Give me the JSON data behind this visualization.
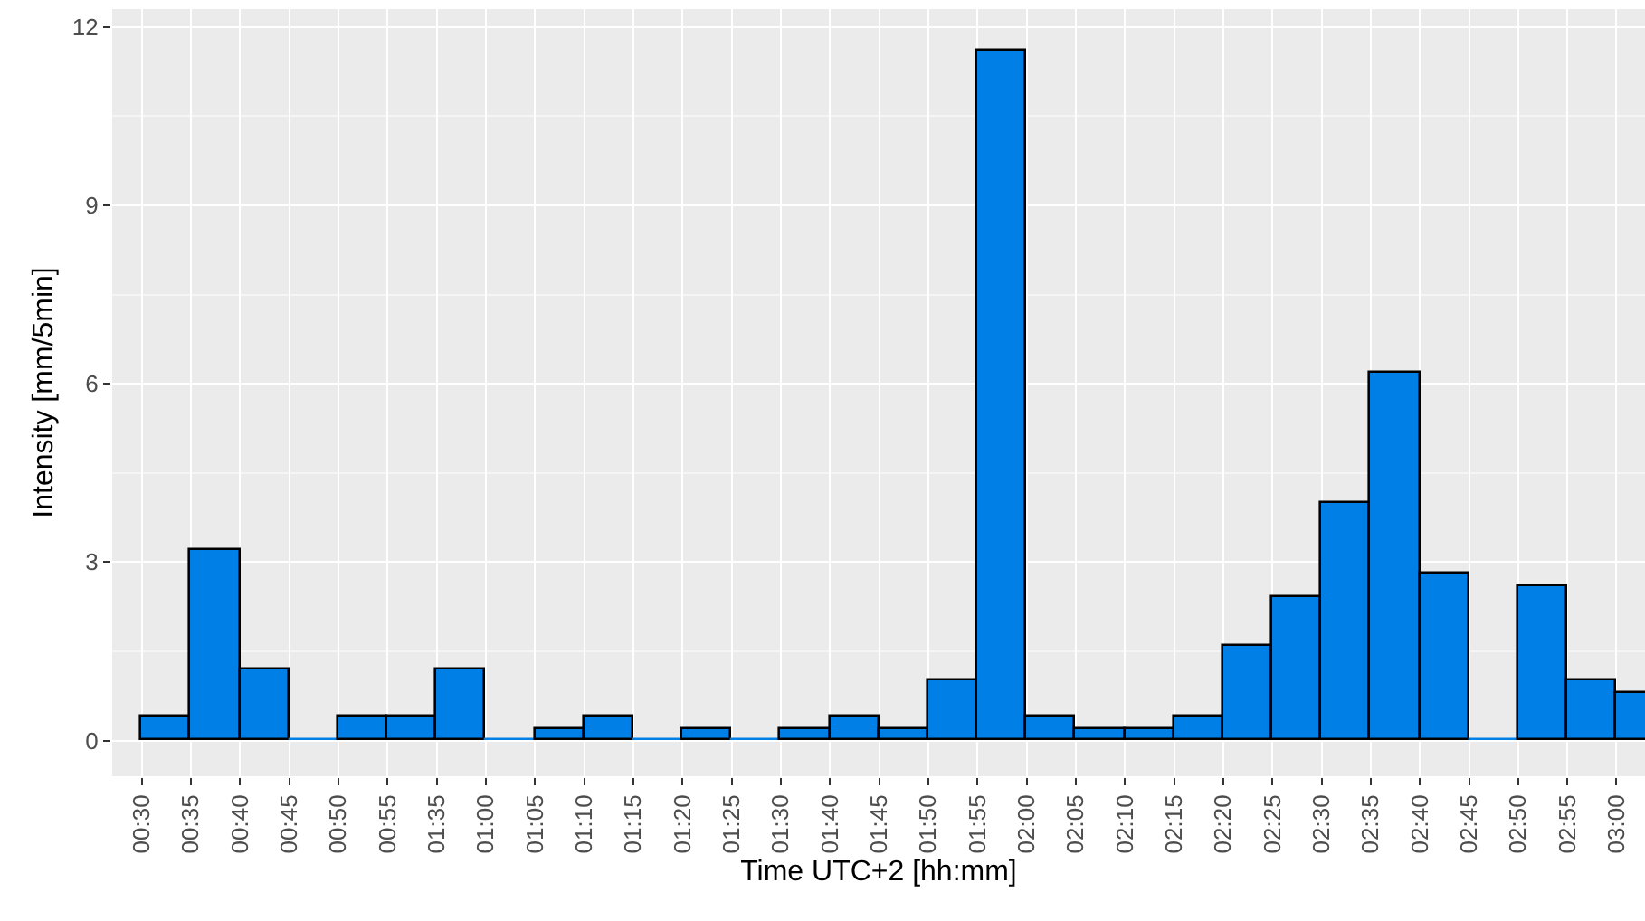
{
  "chart_data": {
    "type": "bar",
    "xlabel": "Time UTC+2 [hh:mm]",
    "ylabel": "Intensity [mm/5min]",
    "categories": [
      "00:30",
      "00:35",
      "00:40",
      "00:45",
      "00:50",
      "00:55",
      "01:35",
      "01:00",
      "01:05",
      "01:10",
      "01:15",
      "01:20",
      "01:25",
      "01:30",
      "01:40",
      "01:45",
      "01:50",
      "01:55",
      "02:00",
      "02:05",
      "02:10",
      "02:15",
      "02:20",
      "02:25",
      "02:30",
      "02:35",
      "02:40",
      "02:45",
      "02:50",
      "02:55",
      "03:00"
    ],
    "values": [
      0.4,
      3.2,
      1.2,
      0,
      0.4,
      0.4,
      1.2,
      0,
      0.2,
      0.4,
      0,
      0.2,
      0,
      0.2,
      0.4,
      0.2,
      1.0,
      11.6,
      0.4,
      0.2,
      0.2,
      0.4,
      1.6,
      2.4,
      4.0,
      6.2,
      2.8,
      0,
      2.6,
      1.0,
      0.8
    ],
    "color": "#0080e6",
    "ylim": [
      -0.6,
      12.3
    ],
    "yticks": [
      0,
      3,
      6,
      9,
      12
    ],
    "grid": true
  }
}
